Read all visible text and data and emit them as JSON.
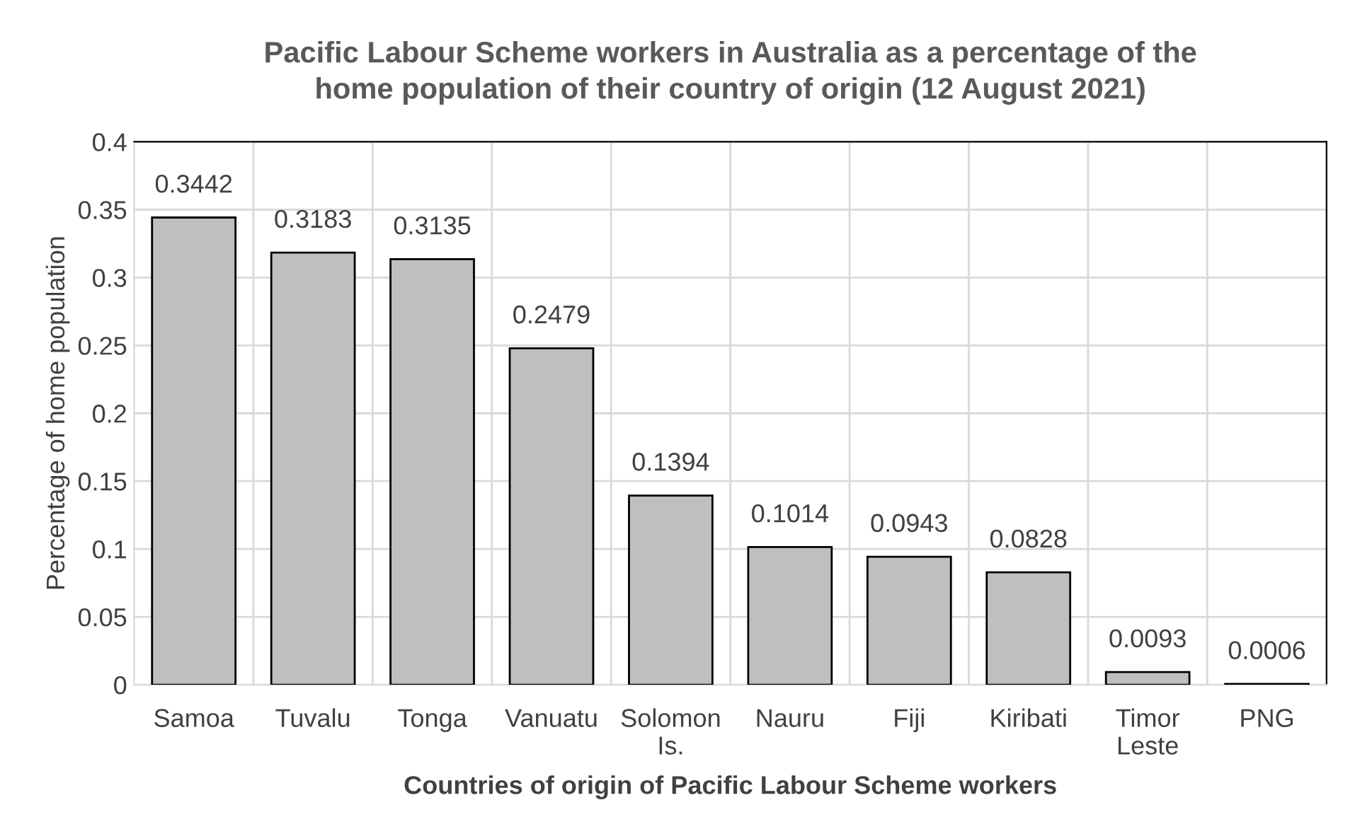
{
  "chart_data": {
    "type": "bar",
    "title": "Pacific Labour Scheme workers in Australia as a percentage of the\nhome population of their country of origin (12 August 2021)",
    "xlabel": "Countries of origin of Pacific Labour Scheme workers",
    "ylabel": "Percentage of home population",
    "categories": [
      "Samoa",
      "Tuvalu",
      "Tonga",
      "Vanuatu",
      "Solomon\nIs.",
      "Nauru",
      "Fiji",
      "Kiribati",
      "Timor\nLeste",
      "PNG"
    ],
    "values": [
      0.3442,
      0.3183,
      0.3135,
      0.2479,
      0.1394,
      0.1014,
      0.0943,
      0.0828,
      0.0093,
      0.0006
    ],
    "color": "#bfbfbf",
    "ylim": [
      0,
      0.4
    ],
    "yticks": [
      0,
      {
        "value": 0.05,
        "label": "0.05"
      },
      {
        "value": 0.1,
        "label": "0.1"
      },
      {
        "value": 0.15,
        "label": "0.15"
      },
      {
        "value": 0.2,
        "label": "0.2"
      },
      {
        "value": 0.25,
        "label": "0.25"
      },
      {
        "value": 0.3,
        "label": "0.3"
      },
      {
        "value": 0.35,
        "label": "0.35"
      },
      {
        "value": 0.4,
        "label": "0.4"
      }
    ],
    "data_labels": true,
    "grid": true
  }
}
